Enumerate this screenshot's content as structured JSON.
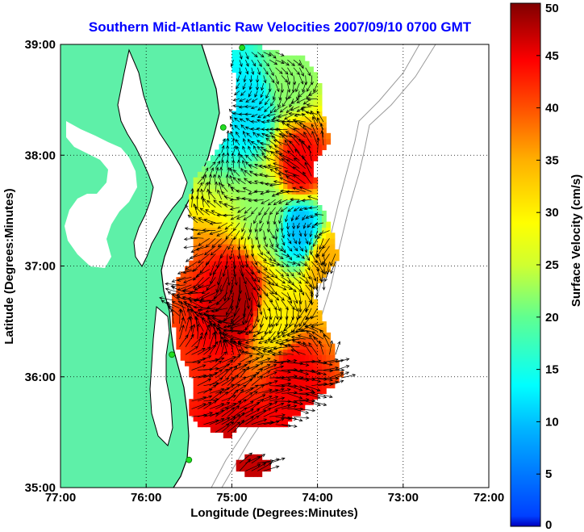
{
  "title": "Southern Mid-Atlantic Raw Velocities 2007/09/10 0700 GMT",
  "colors": {
    "land": "#5ef0a8",
    "title": "#0000ff",
    "coast": "#000000",
    "bathymetry": "#9a9a9a",
    "station": "#22dd22"
  },
  "chart_data": {
    "type": "heatmap",
    "xlabel": "Longitude (Degrees:Minutes)",
    "ylabel": "Latitude (Degrees:Minutes)",
    "xlim": [
      -77,
      -72
    ],
    "ylim": [
      35,
      39
    ],
    "x_ticks": [
      -77,
      -76,
      -75,
      -74,
      -73,
      -72
    ],
    "x_tick_labels": [
      "77:00",
      "76:00",
      "75:00",
      "74:00",
      "73:00",
      "72:00"
    ],
    "y_ticks": [
      35,
      36,
      37,
      38,
      39
    ],
    "y_tick_labels": [
      "35:00",
      "36:00",
      "37:00",
      "38:00",
      "39:00"
    ],
    "grid": true,
    "colorbar": {
      "label": "Surface Velocity (cm/s)",
      "min": 0,
      "max": 50,
      "ticks": [
        0,
        5,
        10,
        15,
        20,
        25,
        30,
        35,
        40,
        45,
        50
      ],
      "colormap": "jet"
    },
    "velocity_regions": [
      {
        "region": "northern lobe, offshore",
        "lon": -74.3,
        "lat": 38.7,
        "speed": 22
      },
      {
        "region": "northern lobe, nearshore",
        "lon": -74.8,
        "lat": 38.4,
        "speed": 12
      },
      {
        "region": "northern jet core",
        "lon": -74.2,
        "lat": 37.9,
        "speed": 45
      },
      {
        "region": "central band",
        "lon": -74.6,
        "lat": 37.5,
        "speed": 22
      },
      {
        "region": "central low-speed pocket",
        "lon": -74.2,
        "lat": 37.35,
        "speed": 10
      },
      {
        "region": "eastern central band",
        "lon": -73.9,
        "lat": 37.0,
        "speed": 35
      },
      {
        "region": "southern jet core",
        "lon": -74.9,
        "lat": 36.7,
        "speed": 48
      },
      {
        "region": "southern mid band",
        "lon": -74.5,
        "lat": 36.5,
        "speed": 30
      },
      {
        "region": "southern outer band",
        "lon": -74.3,
        "lat": 36.0,
        "speed": 45
      },
      {
        "region": "southern tip",
        "lon": -74.8,
        "lat": 35.2,
        "speed": 47
      }
    ],
    "stations": [
      {
        "lon": -74.88,
        "lat": 38.97
      },
      {
        "lon": -75.1,
        "lat": 38.25
      },
      {
        "lon": -75.7,
        "lat": 36.2
      },
      {
        "lon": -75.5,
        "lat": 35.25
      }
    ]
  }
}
